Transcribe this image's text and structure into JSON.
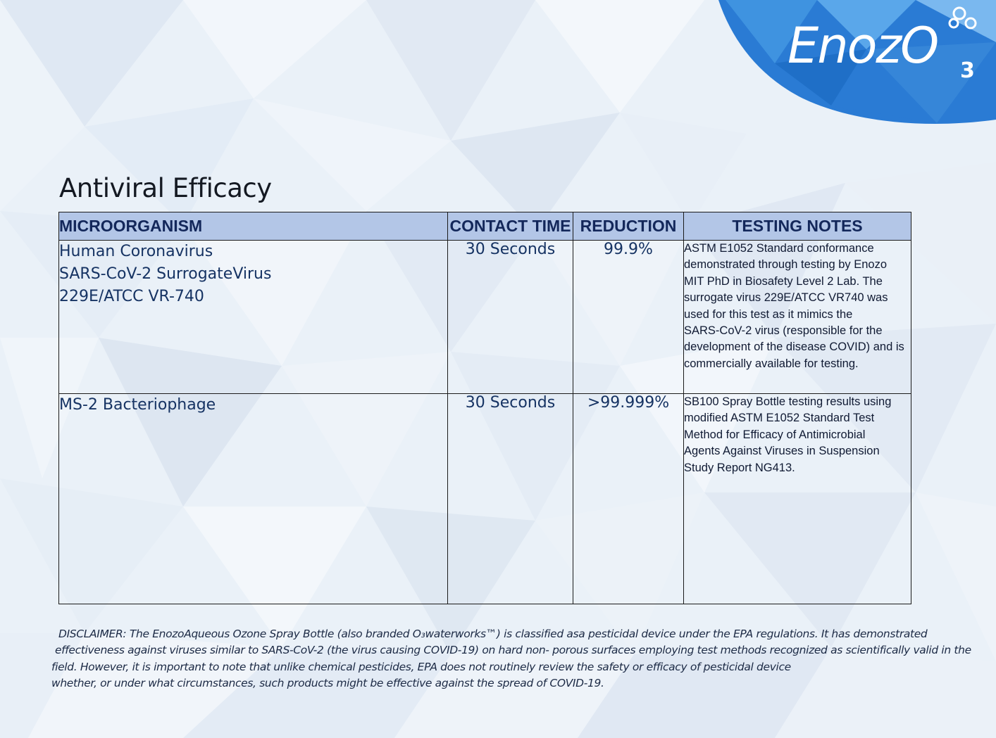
{
  "brand": {
    "logo_text": "EnozO",
    "logo_subscript": "3",
    "colors": {
      "accent_blue": "#2a7bd4",
      "header_fill": "#b3c6e7",
      "header_text": "#13275a",
      "body_text": "#163363"
    }
  },
  "page": {
    "title": "Antiviral Efficacy"
  },
  "table": {
    "headers": {
      "microorganism": "MICROORGANISM",
      "contact_time": "CONTACT TIME",
      "reduction": "REDUCTION",
      "testing_notes": "TESTING NOTES"
    },
    "rows": [
      {
        "microorganism_lines": [
          "Human Coronavirus",
          "SARS-CoV-2 SurrogateVirus",
          "229E/ATCC VR-740"
        ],
        "contact_time": "30 Seconds",
        "reduction": "99.9%",
        "notes_lines": [
          "ASTM E1052 Standard conformance",
          "demonstrated through testing by Enozo",
          "MIT PhD in Biosafety Level 2 Lab. The",
          "surrogate virus 229E/ATCC VR740 was",
          "used for this test as it mimics the",
          "SARS-CoV-2 virus (responsible for the",
          "development of the disease COVID) and is",
          "commercially available for testing."
        ]
      },
      {
        "microorganism_lines": [
          "MS-2 Bacteriophage"
        ],
        "contact_time": "30 Seconds",
        "reduction": ">99.999%",
        "notes_lines": [
          "SB100 Spray Bottle testing  results using",
          "modified ASTM E1052 Standard Test",
          "Method for Efficacy of Antimicrobial",
          "Agents Against Viruses in Suspension",
          "Study Report NG413."
        ]
      }
    ]
  },
  "disclaimer": {
    "lines": [
      "DISCLAIMER: The EnozoAqueous Ozone Spray Bottle (also branded O₃waterworks™) is classified asa pesticidal device under the EPA regulations. It has demonstrated",
      "effectiveness against viruses similar to SARS-CoV-2 (the virus causing COVID-19) on hard non- porous surfaces employing test methods recognized as scientifically valid in the",
      "field. However, it is important to note that unlike chemical pesticides, EPA does not routinely review the safety or efficacy of pesticidal device",
      "whether, or under what circumstances, such products might be effective against the spread of COVID-19."
    ]
  }
}
